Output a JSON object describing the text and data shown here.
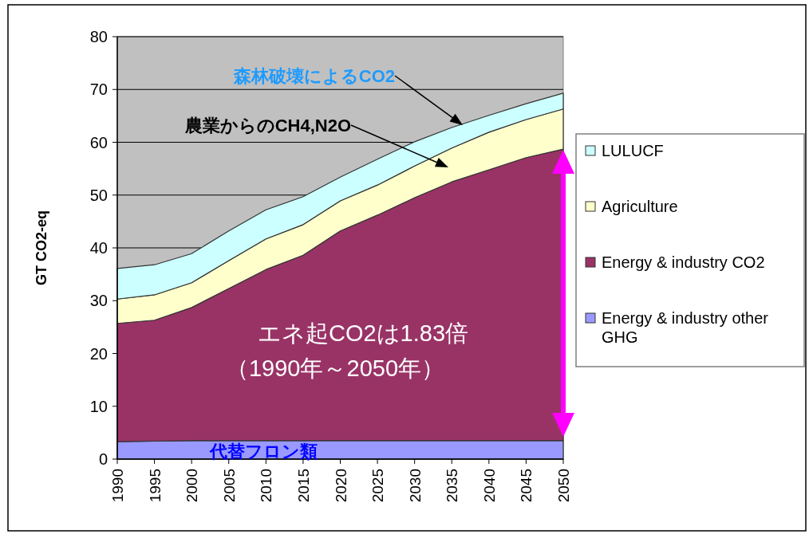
{
  "chart_data": {
    "type": "area",
    "stacked": true,
    "ylabel": "GT CO2-eq",
    "x": [
      1990,
      1995,
      2000,
      2005,
      2010,
      2015,
      2020,
      2025,
      2030,
      2035,
      2040,
      2045,
      2050
    ],
    "series": [
      {
        "name": "Energy & industry other GHG",
        "color": "#9999ff",
        "values": [
          3.3,
          3.4,
          3.5,
          3.5,
          3.5,
          3.5,
          3.5,
          3.5,
          3.5,
          3.5,
          3.5,
          3.5,
          3.5
        ]
      },
      {
        "name": "Energy & industry CO2",
        "color": "#993366",
        "values": [
          22.4,
          22.9,
          25.2,
          28.8,
          32.4,
          35.1,
          39.7,
          42.7,
          46.0,
          49.0,
          51.3,
          53.6,
          55.2
        ]
      },
      {
        "name": "Agriculture",
        "color": "#ffffcc",
        "values": [
          4.6,
          4.8,
          4.7,
          5.3,
          5.8,
          5.8,
          5.7,
          5.7,
          6.0,
          6.4,
          7.1,
          7.2,
          7.6
        ]
      },
      {
        "name": "LULUCF",
        "color": "#ccffff",
        "values": [
          5.8,
          5.7,
          5.5,
          5.6,
          5.5,
          5.3,
          4.5,
          4.9,
          4.6,
          3.9,
          3.2,
          3.0,
          3.0
        ]
      }
    ],
    "xlim": [
      1990,
      2050
    ],
    "xticks": [
      1990,
      1995,
      2000,
      2005,
      2010,
      2015,
      2020,
      2025,
      2030,
      2035,
      2040,
      2045,
      2050
    ],
    "ylim": [
      0,
      80
    ],
    "yticks": [
      0,
      10,
      20,
      30,
      40,
      50,
      60,
      70,
      80
    ],
    "grid": "y",
    "legend": "right",
    "annotations": [
      "森林破壊によるCO2",
      "農業からのCH4,N2O",
      "エネ起CO2は1.83倍",
      "（1990年～2050年）",
      "代替フロン類"
    ]
  }
}
